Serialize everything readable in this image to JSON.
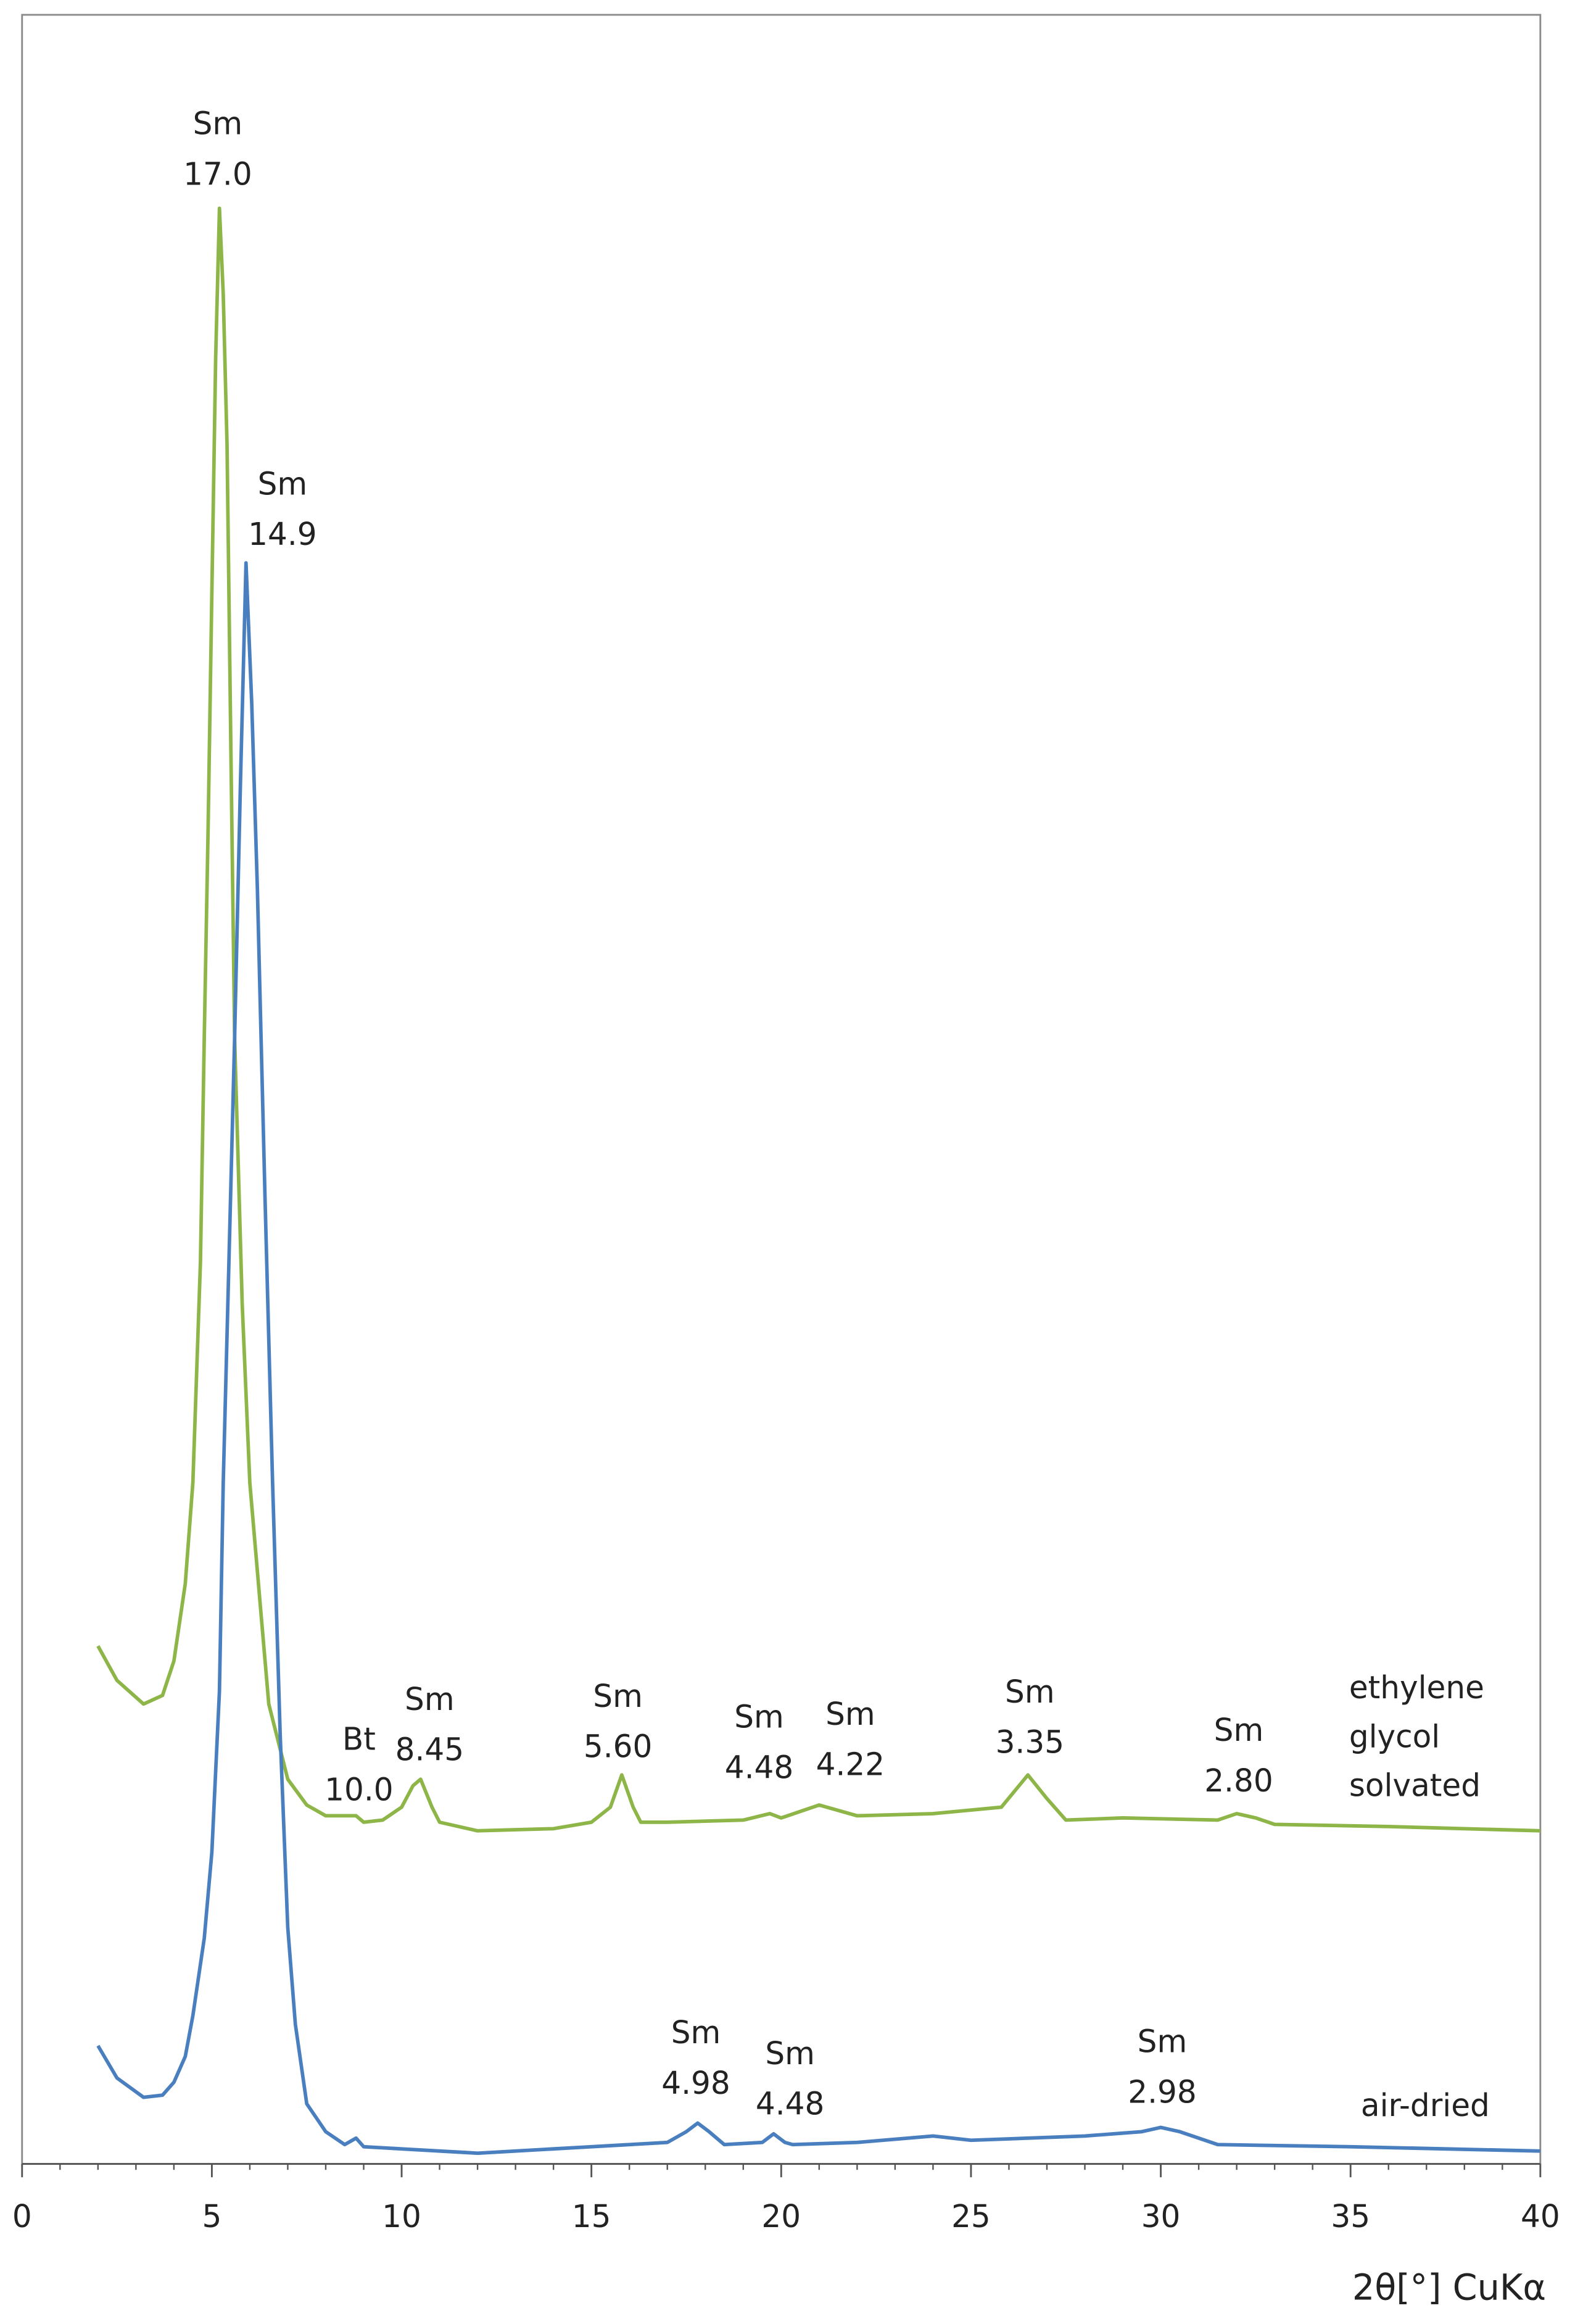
{
  "chart_data": {
    "type": "line",
    "x_label": "2θ[°] CuKα",
    "xlim": [
      0,
      40
    ],
    "xticks": [
      0,
      5,
      10,
      15,
      20,
      25,
      30,
      35,
      40
    ],
    "ylim": [
      0,
      100
    ],
    "series": [
      {
        "name": "ethylene glycol solvated",
        "color": "#8db548",
        "x": [
          2,
          2.5,
          3.2,
          3.7,
          4,
          4.3,
          4.5,
          4.7,
          4.8,
          4.9,
          5.0,
          5.1,
          5.2,
          5.3,
          5.4,
          5.5,
          5.6,
          5.8,
          6,
          6.3,
          6.5,
          7,
          7.5,
          8,
          8.8,
          9,
          9.5,
          10,
          10.3,
          10.5,
          10.8,
          11,
          12,
          14,
          15,
          15.5,
          15.8,
          16.1,
          16.3,
          17,
          19,
          19.7,
          20,
          21,
          22,
          24,
          25.8,
          26.5,
          27,
          27.5,
          29,
          31.5,
          32,
          32.5,
          33,
          36,
          40
        ],
        "values": [
          24.1,
          22.5,
          21.4,
          21.8,
          23.4,
          27.0,
          31.7,
          42.0,
          52.4,
          62.0,
          73.1,
          84.0,
          91.0,
          87.0,
          80.0,
          66.0,
          52.4,
          40.0,
          31.7,
          25.5,
          21.4,
          17.9,
          16.7,
          16.2,
          16.2,
          15.9,
          16.0,
          16.6,
          17.6,
          17.9,
          16.6,
          15.9,
          15.5,
          15.6,
          15.9,
          16.6,
          18.1,
          16.6,
          15.9,
          15.9,
          16.0,
          16.3,
          16.1,
          16.7,
          16.2,
          16.3,
          16.6,
          18.1,
          17.0,
          16.0,
          16.1,
          16.0,
          16.3,
          16.1,
          15.8,
          15.7,
          15.5
        ]
      },
      {
        "name": "air-dried",
        "color": "#4a7fbf",
        "x": [
          2,
          2.5,
          3.2,
          3.7,
          4,
          4.3,
          4.5,
          4.8,
          5,
          5.2,
          5.3,
          5.45,
          5.6,
          5.75,
          5.9,
          6.05,
          6.2,
          6.4,
          6.6,
          6.8,
          7,
          7.2,
          7.5,
          8,
          8.5,
          8.8,
          9,
          10,
          12,
          15,
          17,
          17.5,
          17.8,
          18.1,
          18.5,
          19.5,
          19.8,
          20.1,
          20.3,
          22,
          24,
          25,
          28,
          29.5,
          30,
          30.5,
          31.5,
          35,
          40
        ],
        "values": [
          5.5,
          4.0,
          3.1,
          3.2,
          3.8,
          5.0,
          6.9,
          10.5,
          14.5,
          22.0,
          31.7,
          42.0,
          52.4,
          64.0,
          74.5,
          68.0,
          59.3,
          45.0,
          31.7,
          20.0,
          11.0,
          6.5,
          2.8,
          1.5,
          0.9,
          1.2,
          0.8,
          0.7,
          0.5,
          0.8,
          1.0,
          1.5,
          1.9,
          1.5,
          0.9,
          1.0,
          1.4,
          1.0,
          0.9,
          1.0,
          1.3,
          1.1,
          1.3,
          1.5,
          1.7,
          1.5,
          0.9,
          0.8,
          0.6
        ]
      }
    ],
    "annotations": [
      {
        "label": "Sm",
        "value": "17.0"
      },
      {
        "label": "Sm",
        "value": "14.9"
      },
      {
        "label": "Bt",
        "value": "10.0"
      },
      {
        "label": "Sm",
        "value": "8.45"
      },
      {
        "label": "Sm",
        "value": "5.60"
      },
      {
        "label": "Sm",
        "value": "4.48"
      },
      {
        "label": "Sm",
        "value": "4.22"
      },
      {
        "label": "Sm",
        "value": "3.35"
      },
      {
        "label": "Sm",
        "value": "2.80"
      },
      {
        "label": "Sm",
        "value": "4.98"
      },
      {
        "label": "Sm",
        "value": "4.48"
      },
      {
        "label": "Sm",
        "value": "2.98"
      }
    ]
  }
}
